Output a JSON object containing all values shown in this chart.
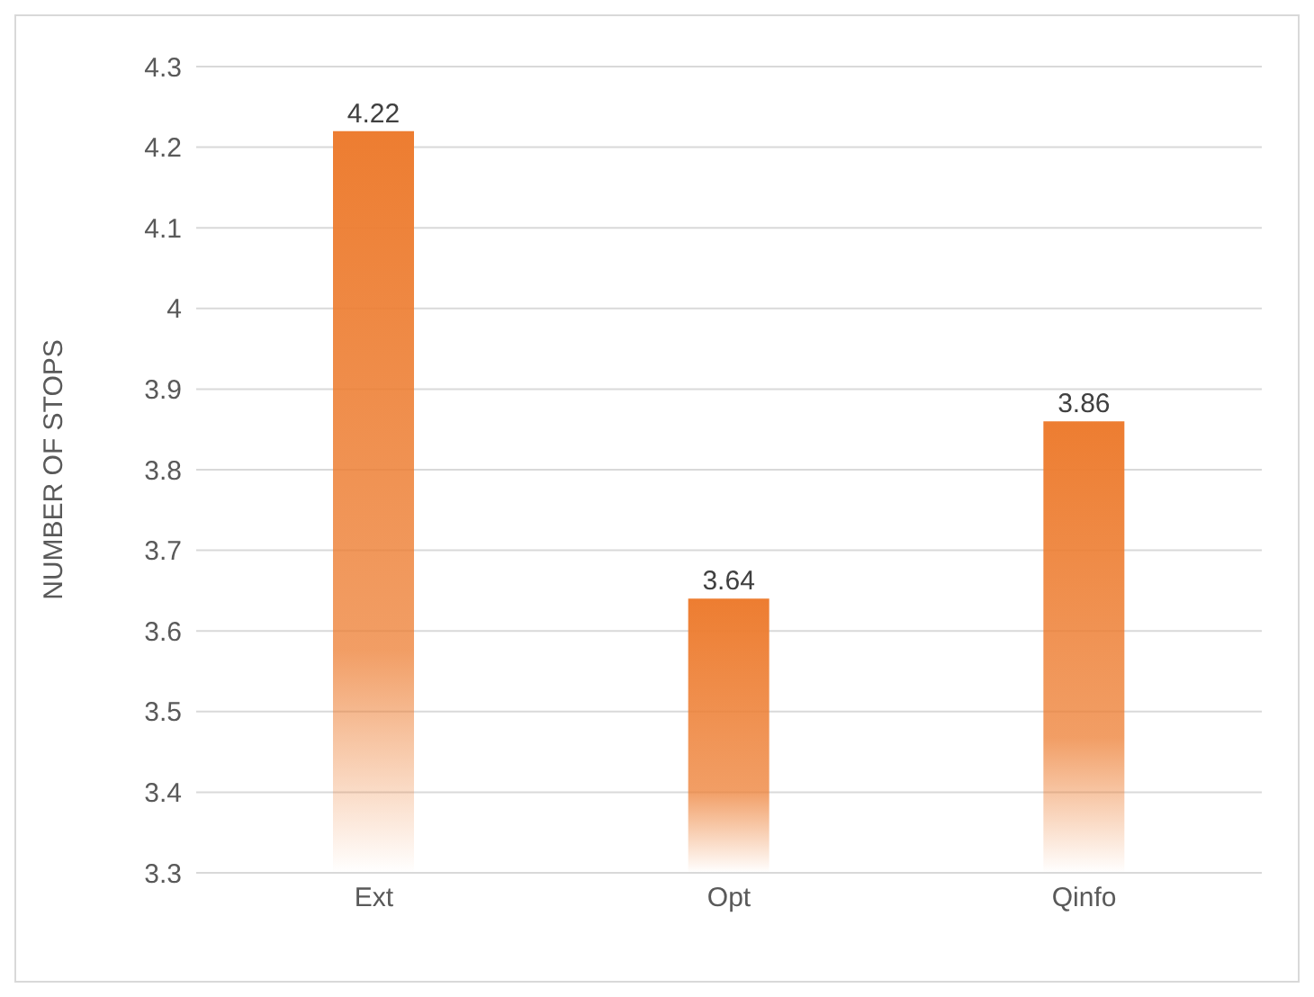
{
  "chart_data": {
    "type": "bar",
    "ylabel": "NUMBER OF STOPS",
    "categories": [
      "Ext",
      "Opt",
      "Qinfo"
    ],
    "values": [
      4.22,
      3.64,
      3.86
    ],
    "color": "#ed7d31",
    "ylim": [
      3.3,
      4.3
    ],
    "yticks": [
      3.3,
      3.4,
      3.5,
      3.6,
      3.7,
      3.8,
      3.9,
      4,
      4.1,
      4.2,
      4.3
    ],
    "grid": "y",
    "data_labels": true
  }
}
